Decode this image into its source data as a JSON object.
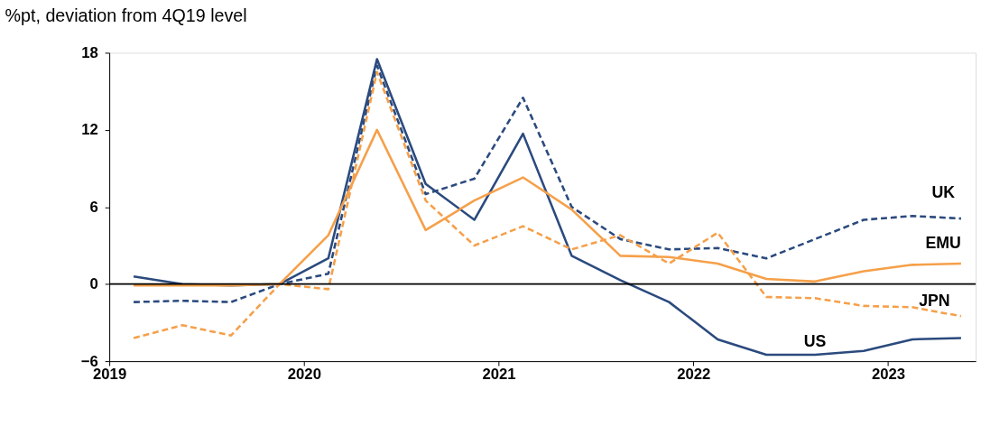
{
  "chart_data": {
    "type": "line",
    "title": "%pt, deviation from 4Q19 level",
    "x": [
      2019.125,
      2019.375,
      2019.625,
      2019.875,
      2020.125,
      2020.375,
      2020.625,
      2020.875,
      2021.125,
      2021.375,
      2021.625,
      2021.875,
      2022.125,
      2022.375,
      2022.625,
      2022.875,
      2023.125,
      2023.375
    ],
    "series": [
      {
        "name": "US",
        "color": "#2b4a7e",
        "line_style": "solid",
        "values": [
          0.6,
          0,
          -0.1,
          0,
          2.0,
          17.5,
          7.8,
          5.0,
          11.7,
          2.2,
          0.3,
          -1.4,
          -4.3,
          -5.5,
          -5.5,
          -5.2,
          -4.3,
          -4.2
        ]
      },
      {
        "name": "UK",
        "color": "#2b4a7e",
        "line_style": "dashed",
        "values": [
          -1.4,
          -1.3,
          -1.4,
          0,
          0.8,
          17.0,
          7.0,
          8.2,
          14.5,
          6.0,
          3.5,
          2.7,
          2.8,
          2.0,
          3.5,
          5.0,
          5.3,
          5.1
        ]
      },
      {
        "name": "EMU",
        "color": "#f5a04a",
        "line_style": "solid",
        "values": [
          -0.1,
          -0.1,
          -0.1,
          0,
          3.8,
          12.0,
          4.2,
          6.5,
          8.3,
          5.8,
          2.2,
          2.1,
          1.6,
          0.4,
          0.2,
          1.0,
          1.5,
          1.6
        ]
      },
      {
        "name": "JPN",
        "color": "#f5a04a",
        "line_style": "dashed",
        "values": [
          -4.2,
          -3.2,
          -4.0,
          0,
          -0.4,
          16.5,
          6.5,
          3.0,
          4.5,
          2.7,
          3.8,
          1.6,
          4.0,
          -1.0,
          -1.1,
          -1.7,
          -1.8,
          -2.5
        ]
      }
    ],
    "xlim": [
      2019,
      2023.45
    ],
    "xticks": [
      2019,
      2020,
      2021,
      2022,
      2023
    ],
    "ylim": [
      -6,
      18
    ],
    "yticks": [
      -6,
      0,
      6,
      12,
      18
    ],
    "ref_lines": [
      {
        "axis": "y",
        "value": 0,
        "color": "#000000"
      }
    ],
    "grid": false,
    "marker": "none"
  }
}
